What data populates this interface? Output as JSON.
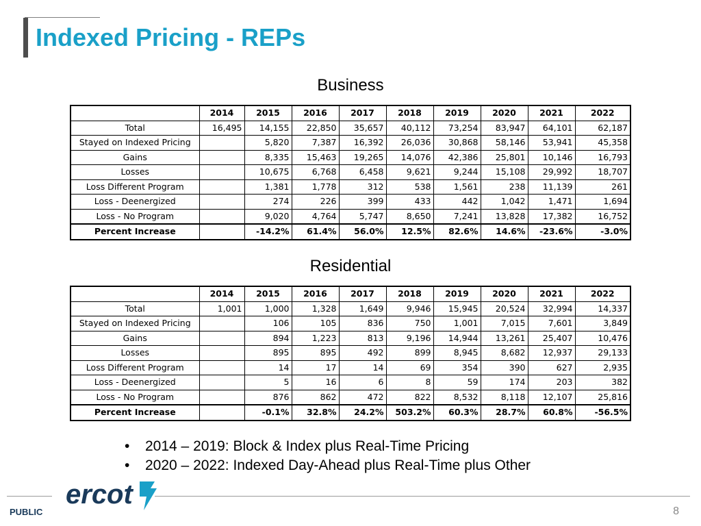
{
  "slide": {
    "title": "Indexed Pricing - REPs",
    "page_number": "8",
    "footer_label": "PUBLIC",
    "logo_text": "ercot"
  },
  "years": [
    "2014",
    "2015",
    "2016",
    "2017",
    "2018",
    "2019",
    "2020",
    "2021",
    "2022"
  ],
  "business": {
    "title": "Business",
    "rows": [
      {
        "label": "Total",
        "values": [
          "16,495",
          "14,155",
          "22,850",
          "35,657",
          "40,112",
          "73,254",
          "83,947",
          "64,101",
          "62,187"
        ]
      },
      {
        "label": "Stayed on Indexed Pricing",
        "values": [
          "",
          "5,820",
          "7,387",
          "16,392",
          "26,036",
          "30,868",
          "58,146",
          "53,941",
          "45,358"
        ]
      },
      {
        "label": "Gains",
        "values": [
          "",
          "8,335",
          "15,463",
          "19,265",
          "14,076",
          "42,386",
          "25,801",
          "10,146",
          "16,793"
        ]
      },
      {
        "label": "Losses",
        "values": [
          "",
          "10,675",
          "6,768",
          "6,458",
          "9,621",
          "9,244",
          "15,108",
          "29,992",
          "18,707"
        ]
      },
      {
        "label": "Loss Different Program",
        "values": [
          "",
          "1,381",
          "1,778",
          "312",
          "538",
          "1,561",
          "238",
          "11,139",
          "261"
        ]
      },
      {
        "label": "Loss  - Deenergized",
        "values": [
          "",
          "274",
          "226",
          "399",
          "433",
          "442",
          "1,042",
          "1,471",
          "1,694"
        ]
      },
      {
        "label": "Loss - No Program",
        "values": [
          "",
          "9,020",
          "4,764",
          "5,747",
          "8,650",
          "7,241",
          "13,828",
          "17,382",
          "16,752"
        ]
      }
    ],
    "percent": {
      "label": "Percent Increase",
      "values": [
        "",
        "-14.2%",
        "61.4%",
        "56.0%",
        "12.5%",
        "82.6%",
        "14.6%",
        "-23.6%",
        "-3.0%"
      ]
    }
  },
  "residential": {
    "title": "Residential",
    "rows": [
      {
        "label": "Total",
        "values": [
          "1,001",
          "1,000",
          "1,328",
          "1,649",
          "9,946",
          "15,945",
          "20,524",
          "32,994",
          "14,337"
        ]
      },
      {
        "label": "Stayed on Indexed Pricing",
        "values": [
          "",
          "106",
          "105",
          "836",
          "750",
          "1,001",
          "7,015",
          "7,601",
          "3,849"
        ]
      },
      {
        "label": "Gains",
        "values": [
          "",
          "894",
          "1,223",
          "813",
          "9,196",
          "14,944",
          "13,261",
          "25,407",
          "10,476"
        ]
      },
      {
        "label": "Losses",
        "values": [
          "",
          "895",
          "895",
          "492",
          "899",
          "8,945",
          "8,682",
          "12,937",
          "29,133"
        ]
      },
      {
        "label": "Loss Different Program",
        "values": [
          "",
          "14",
          "17",
          "14",
          "69",
          "354",
          "390",
          "627",
          "2,935"
        ]
      },
      {
        "label": "Loss  - Deenergized",
        "values": [
          "",
          "5",
          "16",
          "6",
          "8",
          "59",
          "174",
          "203",
          "382"
        ]
      },
      {
        "label": "Loss - No Program",
        "values": [
          "",
          "876",
          "862",
          "472",
          "822",
          "8,532",
          "8,118",
          "12,107",
          "25,816"
        ]
      }
    ],
    "percent": {
      "label": "Percent Increase",
      "values": [
        "",
        "-0.1%",
        "32.8%",
        "24.2%",
        "503.2%",
        "60.3%",
        "28.7%",
        "60.8%",
        "-56.5%"
      ]
    }
  },
  "bullets": [
    "2014 – 2019: Block & Index plus Real-Time Pricing",
    "2020 – 2022: Indexed Day-Ahead plus Real-Time plus Other"
  ],
  "colors": {
    "title": "#1aa0c8",
    "logo": "#1a3a5a"
  }
}
